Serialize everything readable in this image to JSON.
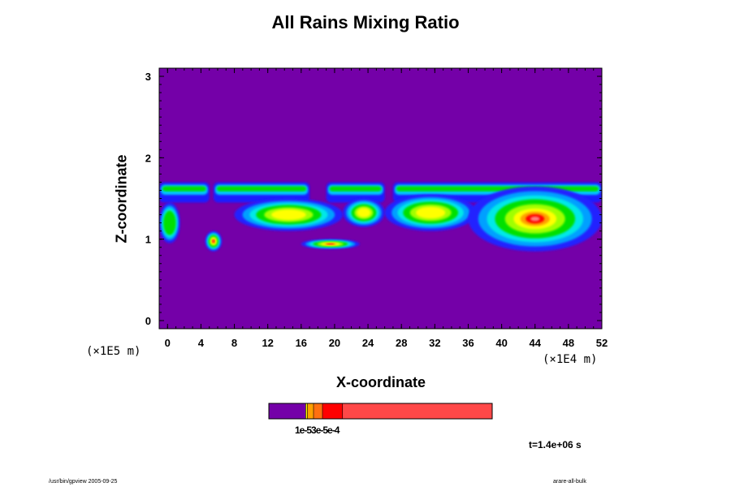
{
  "chart_data": {
    "type": "heatmap",
    "title": "All Rains Mixing Ratio",
    "xlabel": "X-coordinate",
    "ylabel": "Z-coordinate",
    "x_unit": "(×1E4 m)",
    "y_unit": "(×1E5 m)",
    "xlim": [
      -1,
      52
    ],
    "ylim": [
      -0.1,
      3.1
    ],
    "x_ticks": [
      "0",
      "4",
      "8",
      "12",
      "16",
      "20",
      "24",
      "28",
      "32",
      "36",
      "40",
      "44",
      "48",
      "52"
    ],
    "y_ticks": [
      "0",
      "1",
      "2",
      "3"
    ],
    "background_color": "#7400a8",
    "colorbar": {
      "colors": [
        "#7400a8",
        "#ffff00",
        "#ffa000",
        "#ff7010",
        "#ff0000",
        "#ff4848",
        "#ffa0a0"
      ],
      "bounds": [
        0,
        0.165,
        0.172,
        0.2,
        0.24,
        0.33,
        1.0
      ],
      "tick_label": "1e-53e-5e-4"
    },
    "cloud_band": {
      "z_bottom": 1.45,
      "z_top": 1.7,
      "x_ranges": [
        [
          -1,
          5
        ],
        [
          5.5,
          17
        ],
        [
          19,
          26
        ],
        [
          27,
          52
        ]
      ]
    },
    "features": [
      {
        "kind": "rain-patch",
        "x": [
          -1,
          1.5
        ],
        "z": [
          0.95,
          1.45
        ],
        "peak": "green"
      },
      {
        "kind": "rain-patch",
        "x": [
          4.5,
          6.5
        ],
        "z": [
          0.85,
          1.1
        ],
        "peak": "red"
      },
      {
        "kind": "rain-patch",
        "x": [
          8,
          21
        ],
        "z": [
          1.1,
          1.5
        ],
        "peak": "yellow"
      },
      {
        "kind": "rain-patch",
        "x": [
          16,
          23
        ],
        "z": [
          0.88,
          1.0
        ],
        "peak": "red"
      },
      {
        "kind": "rain-patch",
        "x": [
          21,
          26
        ],
        "z": [
          1.15,
          1.5
        ],
        "peak": "yellow"
      },
      {
        "kind": "rain-patch",
        "x": [
          26,
          37
        ],
        "z": [
          1.1,
          1.55
        ],
        "peak": "yellow"
      },
      {
        "kind": "rain-patch",
        "x": [
          36,
          52
        ],
        "z": [
          0.85,
          1.65
        ],
        "peak": "red"
      }
    ],
    "time": "t=1.4e+06 s",
    "grid": false
  },
  "footer": {
    "left": "/usr/bin/gpview 2005-09-25",
    "right": "arare-all-bulk"
  }
}
